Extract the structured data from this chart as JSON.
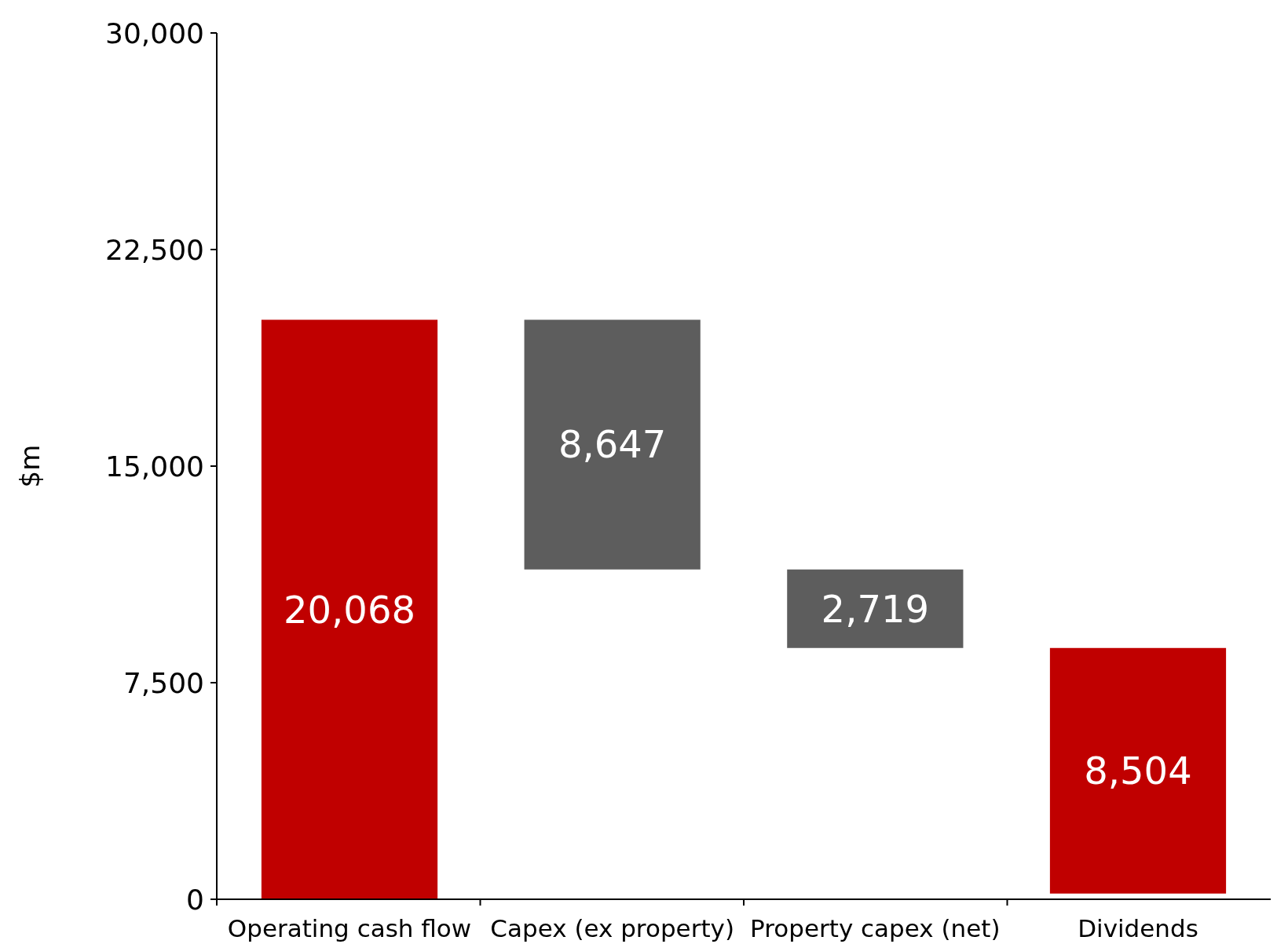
{
  "chart_data": {
    "type": "bar",
    "ylabel": "$m",
    "categories": [
      "Operating cash flow",
      "Capex (ex property)",
      "Property capex (net)",
      "Dividends"
    ],
    "values": [
      20068,
      8647,
      2719,
      8504
    ],
    "base": [
      0,
      11421,
      8702,
      198
    ],
    "colors": [
      "#c00000",
      "#5d5d5d",
      "#5d5d5d",
      "#c00000"
    ],
    "ylim": [
      0,
      30000
    ],
    "yticks": [
      {
        "value": 0,
        "label": "0"
      },
      {
        "value": 7500,
        "label": "7,500"
      },
      {
        "value": 15000,
        "label": "15,000"
      },
      {
        "value": 22500,
        "label": "22,500"
      },
      {
        "value": 30000,
        "label": "30,000"
      }
    ],
    "value_labels": [
      "20,068",
      "8,647",
      "2,719",
      "8,504"
    ],
    "grid": false
  }
}
